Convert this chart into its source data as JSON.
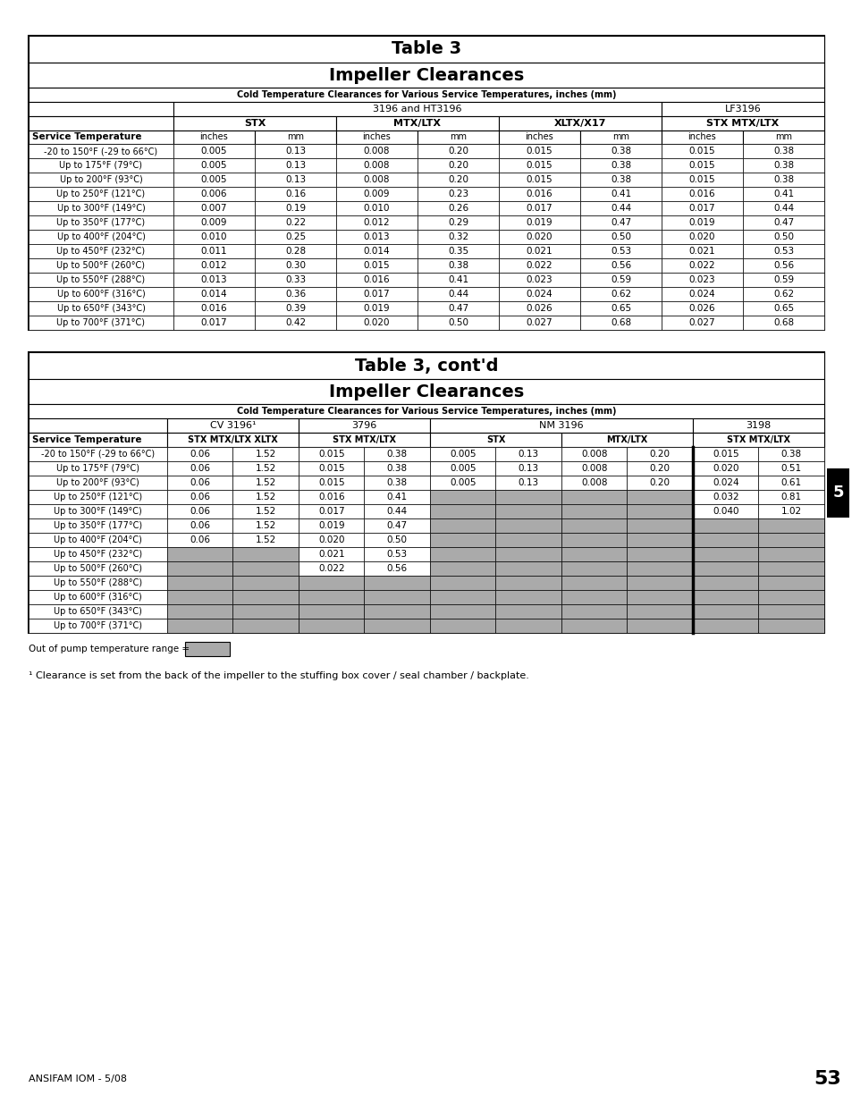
{
  "page_bg": "#ffffff",
  "table1": {
    "title1": "Table 3",
    "title2": "Impeller Clearances",
    "subtitle": "Cold Temperature Clearances for Various Service Temperatures, inches (mm)",
    "group_headers": [
      "3196 and HT3196",
      "LF3196"
    ],
    "col_headers_row1": [
      "STX",
      "MTX/LTX",
      "XLTX/X17",
      "STX MTX/LTX"
    ],
    "col_headers_row2": [
      "inches",
      "mm",
      "inches",
      "mm",
      "inches",
      "mm",
      "inches",
      "mm"
    ],
    "service_temp_header": "Service Temperature",
    "rows": [
      [
        "-20 to 150°F (-29 to 66°C)",
        "0.005",
        "0.13",
        "0.008",
        "0.20",
        "0.015",
        "0.38",
        "0.015",
        "0.38"
      ],
      [
        "Up to 175°F (79°C)",
        "0.005",
        "0.13",
        "0.008",
        "0.20",
        "0.015",
        "0.38",
        "0.015",
        "0.38"
      ],
      [
        "Up to 200°F (93°C)",
        "0.005",
        "0.13",
        "0.008",
        "0.20",
        "0.015",
        "0.38",
        "0.015",
        "0.38"
      ],
      [
        "Up to 250°F (121°C)",
        "0.006",
        "0.16",
        "0.009",
        "0.23",
        "0.016",
        "0.41",
        "0.016",
        "0.41"
      ],
      [
        "Up to 300°F (149°C)",
        "0.007",
        "0.19",
        "0.010",
        "0.26",
        "0.017",
        "0.44",
        "0.017",
        "0.44"
      ],
      [
        "Up to 350°F (177°C)",
        "0.009",
        "0.22",
        "0.012",
        "0.29",
        "0.019",
        "0.47",
        "0.019",
        "0.47"
      ],
      [
        "Up to 400°F (204°C)",
        "0.010",
        "0.25",
        "0.013",
        "0.32",
        "0.020",
        "0.50",
        "0.020",
        "0.50"
      ],
      [
        "Up to 450°F (232°C)",
        "0.011",
        "0.28",
        "0.014",
        "0.35",
        "0.021",
        "0.53",
        "0.021",
        "0.53"
      ],
      [
        "Up to 500°F (260°C)",
        "0.012",
        "0.30",
        "0.015",
        "0.38",
        "0.022",
        "0.56",
        "0.022",
        "0.56"
      ],
      [
        "Up to 550°F (288°C)",
        "0.013",
        "0.33",
        "0.016",
        "0.41",
        "0.023",
        "0.59",
        "0.023",
        "0.59"
      ],
      [
        "Up to 600°F (316°C)",
        "0.014",
        "0.36",
        "0.017",
        "0.44",
        "0.024",
        "0.62",
        "0.024",
        "0.62"
      ],
      [
        "Up to 650°F (343°C)",
        "0.016",
        "0.39",
        "0.019",
        "0.47",
        "0.026",
        "0.65",
        "0.026",
        "0.65"
      ],
      [
        "Up to 700°F (371°C)",
        "0.017",
        "0.42",
        "0.020",
        "0.50",
        "0.027",
        "0.68",
        "0.027",
        "0.68"
      ]
    ]
  },
  "table2": {
    "title1": "Table 3, cont'd",
    "title2": "Impeller Clearances",
    "subtitle": "Cold Temperature Clearances for Various Service Temperatures, inches (mm)",
    "group_headers": [
      "CV 3196¹",
      "3796",
      "NM 3196",
      "3198"
    ],
    "group_spans": [
      2,
      2,
      4,
      2
    ],
    "col_subheaders": [
      "STX MTX/LTX XLTX",
      "STX MTX/LTX",
      "STX",
      "MTX/LTX",
      "STX MTX/LTX"
    ],
    "service_temp_header": "Service Temperature",
    "rows": [
      [
        "-20 to 150°F (-29 to 66°C)",
        "0.06",
        "1.52",
        "0.015",
        "0.38",
        "0.005",
        "0.13",
        "0.008",
        "0.20",
        "0.015",
        "0.38"
      ],
      [
        "Up to 175°F (79°C)",
        "0.06",
        "1.52",
        "0.015",
        "0.38",
        "0.005",
        "0.13",
        "0.008",
        "0.20",
        "0.020",
        "0.51"
      ],
      [
        "Up to 200°F (93°C)",
        "0.06",
        "1.52",
        "0.015",
        "0.38",
        "0.005",
        "0.13",
        "0.008",
        "0.20",
        "0.024",
        "0.61"
      ],
      [
        "Up to 250°F (121°C)",
        "0.06",
        "1.52",
        "0.016",
        "0.41",
        "",
        "",
        "",
        "",
        "0.032",
        "0.81"
      ],
      [
        "Up to 300°F (149°C)",
        "0.06",
        "1.52",
        "0.017",
        "0.44",
        "",
        "",
        "",
        "",
        "0.040",
        "1.02"
      ],
      [
        "Up to 350°F (177°C)",
        "0.06",
        "1.52",
        "0.019",
        "0.47",
        "",
        "",
        "",
        "",
        "",
        ""
      ],
      [
        "Up to 400°F (204°C)",
        "0.06",
        "1.52",
        "0.020",
        "0.50",
        "",
        "",
        "",
        "",
        "",
        ""
      ],
      [
        "Up to 450°F (232°C)",
        "",
        "",
        "0.021",
        "0.53",
        "",
        "",
        "",
        "",
        "",
        ""
      ],
      [
        "Up to 500°F (260°C)",
        "",
        "",
        "0.022",
        "0.56",
        "",
        "",
        "",
        "",
        "",
        ""
      ],
      [
        "Up to 550°F (288°C)",
        "",
        "",
        "",
        "",
        "",
        "",
        "",
        "",
        "",
        ""
      ],
      [
        "Up to 600°F (316°C)",
        "",
        "",
        "",
        "",
        "",
        "",
        "",
        "",
        "",
        ""
      ],
      [
        "Up to 650°F (343°C)",
        "",
        "",
        "",
        "",
        "",
        "",
        "",
        "",
        "",
        ""
      ],
      [
        "Up to 700°F (371°C)",
        "",
        "",
        "",
        "",
        "",
        "",
        "",
        "",
        "",
        ""
      ]
    ],
    "gray_starts": [
      7,
      7,
      9,
      9,
      3,
      3,
      3,
      3,
      5,
      5
    ]
  },
  "footer_note": "Out of pump temperature range =",
  "footnote": "¹ Clearance is set from the back of the impeller to the stuffing box cover / seal chamber / backplate.",
  "bottom_left": "ANSIFAM IOM - 5/08",
  "bottom_right": "53",
  "gray_color": "#aaaaaa",
  "white": "#ffffff",
  "black": "#000000",
  "tab_label": "5",
  "tab_bg": "#000000",
  "tab_fg": "#ffffff"
}
